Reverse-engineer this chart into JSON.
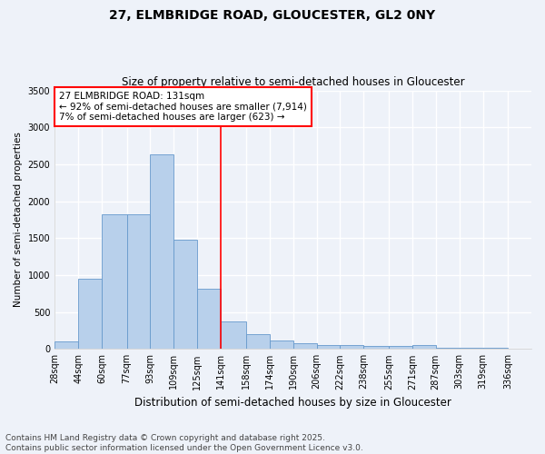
{
  "title_line1": "27, ELMBRIDGE ROAD, GLOUCESTER, GL2 0NY",
  "title_line2": "Size of property relative to semi-detached houses in Gloucester",
  "xlabel": "Distribution of semi-detached houses by size in Gloucester",
  "ylabel": "Number of semi-detached properties",
  "annotation_line1": "27 ELMBRIDGE ROAD: 131sqm",
  "annotation_line2": "← 92% of semi-detached houses are smaller (7,914)",
  "annotation_line3": "7% of semi-detached houses are larger (623) →",
  "footer_line1": "Contains HM Land Registry data © Crown copyright and database right 2025.",
  "footer_line2": "Contains public sector information licensed under the Open Government Licence v3.0.",
  "bin_edges": [
    28,
    44,
    60,
    77,
    93,
    109,
    125,
    141,
    158,
    174,
    190,
    206,
    222,
    238,
    255,
    271,
    287,
    303,
    319,
    336,
    352
  ],
  "bar_heights": [
    100,
    950,
    1820,
    1820,
    2640,
    1480,
    820,
    370,
    195,
    120,
    75,
    55,
    50,
    35,
    35,
    50,
    20,
    15,
    10,
    5
  ],
  "bar_color": "#b8d0eb",
  "bar_edge_color": "#6699cc",
  "property_line_x": 141,
  "property_line_color": "red",
  "ylim": [
    0,
    3500
  ],
  "yticks": [
    0,
    500,
    1000,
    1500,
    2000,
    2500,
    3000,
    3500
  ],
  "background_color": "#eef2f9",
  "grid_color": "#ffffff",
  "annotation_box_color": "white",
  "annotation_box_edge": "red",
  "title_fontsize": 10,
  "subtitle_fontsize": 8.5,
  "ylabel_fontsize": 7.5,
  "xlabel_fontsize": 8.5,
  "tick_fontsize": 7,
  "annotation_fontsize": 7.5,
  "footer_fontsize": 6.5
}
